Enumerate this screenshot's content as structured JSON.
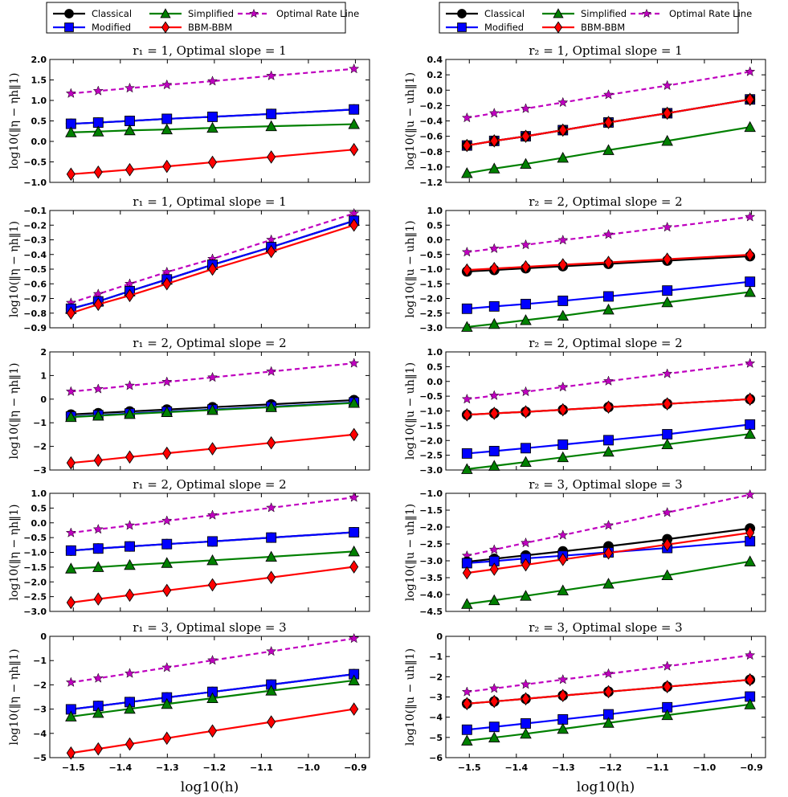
{
  "legend": {
    "entries": [
      {
        "name": "Classical",
        "color": "#000000",
        "marker": "circle",
        "dashed": false
      },
      {
        "name": "Modified",
        "color": "#0000ff",
        "marker": "square",
        "dashed": false
      },
      {
        "name": "Simplified",
        "color": "#008000",
        "marker": "triangle",
        "dashed": false
      },
      {
        "name": "BBM-BBM",
        "color": "#ff0000",
        "marker": "diamond",
        "dashed": false
      },
      {
        "name": "Optimal Rate Line",
        "color": "#bf00bf",
        "marker": "star",
        "dashed": true
      }
    ]
  },
  "x_axis": {
    "label": "log10(h)",
    "ticks": [
      -1.5,
      -1.4,
      -1.3,
      -1.2,
      -1.1,
      -1.0,
      -0.9
    ],
    "tick_labels": [
      "−1.5",
      "−1.4",
      "−1.3",
      "−1.2",
      "−1.1",
      "−1.0",
      "−0.9"
    ]
  },
  "chart_data": [
    {
      "type": "line",
      "panel": "left-1",
      "title": "r₁ = 1,   Optimal slope = 1",
      "ylabel": "log10(‖η − ηh‖1)",
      "xlim": [
        -1.55,
        -0.87
      ],
      "ylim": [
        -1.0,
        2.0
      ],
      "yticks": [
        -1.0,
        -0.5,
        0.0,
        0.5,
        1.0,
        1.5,
        2.0
      ],
      "ytick_labels": [
        "−1.0",
        "−0.5",
        "0.0",
        "0.5",
        "1.0",
        "1.5",
        "2.0"
      ],
      "x": [
        -1.505,
        -1.447,
        -1.38,
        -1.301,
        -1.204,
        -1.079,
        -0.903
      ],
      "series": [
        {
          "name": "Optimal Rate Line",
          "values": [
            1.17,
            1.23,
            1.3,
            1.38,
            1.47,
            1.6,
            1.77
          ]
        },
        {
          "name": "Classical",
          "values": [
            0.43,
            0.46,
            0.5,
            0.55,
            0.6,
            0.67,
            0.78
          ]
        },
        {
          "name": "Modified",
          "values": [
            0.43,
            0.46,
            0.5,
            0.55,
            0.6,
            0.67,
            0.78
          ]
        },
        {
          "name": "Simplified",
          "values": [
            0.22,
            0.24,
            0.27,
            0.29,
            0.33,
            0.37,
            0.42
          ]
        },
        {
          "name": "BBM-BBM",
          "values": [
            -0.8,
            -0.75,
            -0.69,
            -0.61,
            -0.51,
            -0.38,
            -0.2
          ]
        }
      ]
    },
    {
      "type": "line",
      "panel": "right-1",
      "title": "r₂ = 1,   Optimal slope = 1",
      "ylabel": "log10(‖u − uh‖1)",
      "xlim": [
        -1.55,
        -0.87
      ],
      "ylim": [
        -1.2,
        0.4
      ],
      "yticks": [
        -1.2,
        -1.0,
        -0.8,
        -0.6,
        -0.4,
        -0.2,
        0.0,
        0.2,
        0.4
      ],
      "ytick_labels": [
        "−1.2",
        "−1.0",
        "−0.8",
        "−0.6",
        "−0.4",
        "−0.2",
        "0.0",
        "0.2",
        "0.4"
      ],
      "x": [
        -1.505,
        -1.447,
        -1.38,
        -1.301,
        -1.204,
        -1.079,
        -0.903
      ],
      "series": [
        {
          "name": "Optimal Rate Line",
          "values": [
            -0.36,
            -0.3,
            -0.24,
            -0.16,
            -0.06,
            0.06,
            0.24
          ]
        },
        {
          "name": "Modified",
          "values": [
            -0.72,
            -0.66,
            -0.6,
            -0.52,
            -0.42,
            -0.3,
            -0.12
          ]
        },
        {
          "name": "Classical",
          "values": [
            -0.72,
            -0.66,
            -0.6,
            -0.52,
            -0.42,
            -0.3,
            -0.12
          ]
        },
        {
          "name": "BBM-BBM",
          "values": [
            -0.72,
            -0.66,
            -0.6,
            -0.52,
            -0.42,
            -0.3,
            -0.12
          ]
        },
        {
          "name": "Simplified",
          "values": [
            -1.08,
            -1.02,
            -0.96,
            -0.88,
            -0.78,
            -0.66,
            -0.48
          ]
        }
      ]
    },
    {
      "type": "line",
      "panel": "left-2",
      "title": "r₁ = 1,   Optimal slope = 1",
      "ylabel": "log10(‖η − ηh‖1)",
      "xlim": [
        -1.55,
        -0.87
      ],
      "ylim": [
        -0.9,
        -0.1
      ],
      "yticks": [
        -0.9,
        -0.8,
        -0.7,
        -0.6,
        -0.5,
        -0.4,
        -0.3,
        -0.2,
        -0.1
      ],
      "ytick_labels": [
        "−0.9",
        "−0.8",
        "−0.7",
        "−0.6",
        "−0.5",
        "−0.4",
        "−0.3",
        "−0.2",
        "−0.1"
      ],
      "x": [
        -1.505,
        -1.447,
        -1.38,
        -1.301,
        -1.204,
        -1.079,
        -0.903
      ],
      "series": [
        {
          "name": "Optimal Rate Line",
          "values": [
            -0.73,
            -0.67,
            -0.6,
            -0.52,
            -0.43,
            -0.3,
            -0.12
          ]
        },
        {
          "name": "Simplified",
          "values": [
            -0.77,
            -0.72,
            -0.65,
            -0.57,
            -0.47,
            -0.35,
            -0.17
          ]
        },
        {
          "name": "Classical",
          "values": [
            -0.77,
            -0.72,
            -0.65,
            -0.57,
            -0.47,
            -0.35,
            -0.17
          ]
        },
        {
          "name": "Modified",
          "values": [
            -0.77,
            -0.72,
            -0.65,
            -0.57,
            -0.47,
            -0.35,
            -0.17
          ]
        },
        {
          "name": "BBM-BBM",
          "values": [
            -0.8,
            -0.74,
            -0.68,
            -0.6,
            -0.5,
            -0.38,
            -0.2
          ]
        }
      ]
    },
    {
      "type": "line",
      "panel": "right-2",
      "title": "r₂ = 2,   Optimal slope = 2",
      "ylabel": "log10(‖u − uh‖1)",
      "xlim": [
        -1.55,
        -0.87
      ],
      "ylim": [
        -3.0,
        1.0
      ],
      "yticks": [
        -3.0,
        -2.5,
        -2.0,
        -1.5,
        -1.0,
        -0.5,
        0.0,
        0.5,
        1.0
      ],
      "ytick_labels": [
        "−3.0",
        "−2.5",
        "−2.0",
        "−1.5",
        "−1.0",
        "−0.5",
        "0.0",
        "0.5",
        "1.0"
      ],
      "x": [
        -1.505,
        -1.447,
        -1.38,
        -1.301,
        -1.204,
        -1.079,
        -0.903
      ],
      "series": [
        {
          "name": "Optimal Rate Line",
          "values": [
            -0.42,
            -0.3,
            -0.17,
            -0.01,
            0.18,
            0.43,
            0.78
          ]
        },
        {
          "name": "Classical",
          "values": [
            -1.08,
            -1.03,
            -0.97,
            -0.9,
            -0.82,
            -0.71,
            -0.56
          ]
        },
        {
          "name": "BBM-BBM",
          "values": [
            -1.03,
            -0.98,
            -0.92,
            -0.85,
            -0.77,
            -0.66,
            -0.51
          ]
        },
        {
          "name": "Modified",
          "values": [
            -2.35,
            -2.27,
            -2.19,
            -2.08,
            -1.93,
            -1.73,
            -1.43
          ]
        },
        {
          "name": "Simplified",
          "values": [
            -2.97,
            -2.87,
            -2.74,
            -2.59,
            -2.38,
            -2.13,
            -1.78
          ]
        }
      ]
    },
    {
      "type": "line",
      "panel": "left-3",
      "title": "r₁ = 2,   Optimal slope = 2",
      "ylabel": "log10(‖η − ηh‖1)",
      "xlim": [
        -1.55,
        -0.87
      ],
      "ylim": [
        -3,
        2
      ],
      "yticks": [
        -3,
        -2,
        -1,
        0,
        1,
        2
      ],
      "ytick_labels": [
        "−3",
        "−2",
        "−1",
        "0",
        "1",
        "2"
      ],
      "x": [
        -1.505,
        -1.447,
        -1.38,
        -1.301,
        -1.204,
        -1.079,
        -0.903
      ],
      "series": [
        {
          "name": "Optimal Rate Line",
          "values": [
            0.32,
            0.43,
            0.57,
            0.73,
            0.92,
            1.17,
            1.52
          ]
        },
        {
          "name": "Classical",
          "values": [
            -0.65,
            -0.59,
            -0.52,
            -0.44,
            -0.34,
            -0.22,
            -0.04
          ]
        },
        {
          "name": "Modified",
          "values": [
            -0.74,
            -0.68,
            -0.61,
            -0.53,
            -0.44,
            -0.32,
            -0.14
          ]
        },
        {
          "name": "Simplified",
          "values": [
            -0.76,
            -0.7,
            -0.63,
            -0.55,
            -0.46,
            -0.34,
            -0.16
          ]
        },
        {
          "name": "BBM-BBM",
          "values": [
            -2.7,
            -2.59,
            -2.45,
            -2.29,
            -2.1,
            -1.85,
            -1.5
          ]
        }
      ]
    },
    {
      "type": "line",
      "panel": "right-3",
      "title": "r₂ = 2,   Optimal slope = 2",
      "ylabel": "log10(‖u − uh‖1)",
      "xlim": [
        -1.55,
        -0.87
      ],
      "ylim": [
        -3.0,
        1.0
      ],
      "yticks": [
        -3.0,
        -2.5,
        -2.0,
        -1.5,
        -1.0,
        -0.5,
        0.0,
        0.5,
        1.0
      ],
      "ytick_labels": [
        "−3.0",
        "−2.5",
        "−2.0",
        "−1.5",
        "−1.0",
        "−0.5",
        "0.0",
        "0.5",
        "1.0"
      ],
      "x": [
        -1.505,
        -1.447,
        -1.38,
        -1.301,
        -1.204,
        -1.079,
        -0.903
      ],
      "series": [
        {
          "name": "Optimal Rate Line",
          "values": [
            -0.6,
            -0.48,
            -0.35,
            -0.19,
            0.01,
            0.26,
            0.61
          ]
        },
        {
          "name": "Classical",
          "values": [
            -1.13,
            -1.08,
            -1.03,
            -0.96,
            -0.87,
            -0.76,
            -0.6
          ]
        },
        {
          "name": "BBM-BBM",
          "values": [
            -1.13,
            -1.08,
            -1.03,
            -0.96,
            -0.87,
            -0.76,
            -0.6
          ]
        },
        {
          "name": "Modified",
          "values": [
            -2.44,
            -2.36,
            -2.26,
            -2.14,
            -1.99,
            -1.79,
            -1.46
          ]
        },
        {
          "name": "Simplified",
          "values": [
            -2.97,
            -2.86,
            -2.73,
            -2.57,
            -2.38,
            -2.13,
            -1.78
          ]
        }
      ]
    },
    {
      "type": "line",
      "panel": "left-4",
      "title": "r₁ = 2,   Optimal slope = 2",
      "ylabel": "log10(‖η − ηh‖1)",
      "xlim": [
        -1.55,
        -0.87
      ],
      "ylim": [
        -3.0,
        1.0
      ],
      "yticks": [
        -3.0,
        -2.5,
        -2.0,
        -1.5,
        -1.0,
        -0.5,
        0.0,
        0.5,
        1.0
      ],
      "ytick_labels": [
        "−3.0",
        "−2.5",
        "−2.0",
        "−1.5",
        "−1.0",
        "−0.5",
        "0.0",
        "0.5",
        "1.0"
      ],
      "x": [
        -1.505,
        -1.447,
        -1.38,
        -1.301,
        -1.204,
        -1.079,
        -0.903
      ],
      "series": [
        {
          "name": "Optimal Rate Line",
          "values": [
            -0.34,
            -0.22,
            -0.09,
            0.07,
            0.26,
            0.51,
            0.86
          ]
        },
        {
          "name": "Classical",
          "values": [
            -0.94,
            -0.87,
            -0.8,
            -0.72,
            -0.63,
            -0.5,
            -0.32
          ]
        },
        {
          "name": "Modified",
          "values": [
            -0.94,
            -0.87,
            -0.8,
            -0.72,
            -0.63,
            -0.5,
            -0.32
          ]
        },
        {
          "name": "Simplified",
          "values": [
            -1.55,
            -1.5,
            -1.43,
            -1.36,
            -1.27,
            -1.15,
            -0.97
          ]
        },
        {
          "name": "BBM-BBM",
          "values": [
            -2.7,
            -2.58,
            -2.45,
            -2.29,
            -2.1,
            -1.85,
            -1.49
          ]
        }
      ]
    },
    {
      "type": "line",
      "panel": "right-4",
      "title": "r₂ = 3,   Optimal slope = 3",
      "ylabel": "log10(‖u − uh‖1)",
      "xlim": [
        -1.55,
        -0.87
      ],
      "ylim": [
        -4.5,
        -1.0
      ],
      "yticks": [
        -4.5,
        -4.0,
        -3.5,
        -3.0,
        -2.5,
        -2.0,
        -1.5,
        -1.0
      ],
      "ytick_labels": [
        "−4.5",
        "−4.0",
        "−3.5",
        "−3.0",
        "−2.5",
        "−2.0",
        "−1.5",
        "−1.0"
      ],
      "x": [
        -1.505,
        -1.447,
        -1.38,
        -1.301,
        -1.204,
        -1.079,
        -0.903
      ],
      "series": [
        {
          "name": "Optimal Rate Line",
          "values": [
            -2.85,
            -2.67,
            -2.47,
            -2.24,
            -1.95,
            -1.57,
            -1.04
          ]
        },
        {
          "name": "Classical",
          "values": [
            -3.03,
            -2.94,
            -2.84,
            -2.72,
            -2.57,
            -2.36,
            -2.04
          ]
        },
        {
          "name": "Modified",
          "values": [
            -3.07,
            -3.01,
            -2.93,
            -2.85,
            -2.75,
            -2.62,
            -2.42
          ]
        },
        {
          "name": "BBM-BBM",
          "values": [
            -3.36,
            -3.25,
            -3.12,
            -2.96,
            -2.77,
            -2.52,
            -2.17
          ]
        },
        {
          "name": "Simplified",
          "values": [
            -4.28,
            -4.17,
            -4.04,
            -3.88,
            -3.68,
            -3.43,
            -3.02
          ]
        }
      ]
    },
    {
      "type": "line",
      "panel": "left-5",
      "title": "r₁ = 3,   Optimal slope = 3",
      "ylabel": "log10(‖η − ηh‖1)",
      "xlim": [
        -1.55,
        -0.87
      ],
      "ylim": [
        -5,
        0
      ],
      "yticks": [
        -5,
        -4,
        -3,
        -2,
        -1,
        0
      ],
      "ytick_labels": [
        "−5",
        "−4",
        "−3",
        "−2",
        "−1",
        "0"
      ],
      "x": [
        -1.505,
        -1.447,
        -1.38,
        -1.301,
        -1.204,
        -1.079,
        -0.903
      ],
      "series": [
        {
          "name": "Optimal Rate Line",
          "values": [
            -1.9,
            -1.73,
            -1.53,
            -1.29,
            -0.99,
            -0.62,
            -0.09
          ]
        },
        {
          "name": "Classical",
          "values": [
            -3.01,
            -2.87,
            -2.71,
            -2.52,
            -2.29,
            -1.99,
            -1.56
          ]
        },
        {
          "name": "Modified",
          "values": [
            -3.01,
            -2.87,
            -2.71,
            -2.52,
            -2.29,
            -1.99,
            -1.56
          ]
        },
        {
          "name": "Simplified",
          "values": [
            -3.31,
            -3.16,
            -2.99,
            -2.79,
            -2.55,
            -2.24,
            -1.82
          ]
        },
        {
          "name": "BBM-BBM",
          "values": [
            -4.81,
            -4.64,
            -4.44,
            -4.2,
            -3.9,
            -3.53,
            -3.0
          ]
        }
      ]
    },
    {
      "type": "line",
      "panel": "right-5",
      "title": "r₂ = 3,   Optimal slope = 3",
      "ylabel": "log10(‖u − uh‖1)",
      "xlim": [
        -1.55,
        -0.87
      ],
      "ylim": [
        -6,
        0
      ],
      "yticks": [
        -6,
        -5,
        -4,
        -3,
        -2,
        -1,
        0
      ],
      "ytick_labels": [
        "−6",
        "−5",
        "−4",
        "−3",
        "−2",
        "−1",
        "0"
      ],
      "x": [
        -1.505,
        -1.447,
        -1.38,
        -1.301,
        -1.204,
        -1.079,
        -0.903
      ],
      "series": [
        {
          "name": "Optimal Rate Line",
          "values": [
            -2.75,
            -2.58,
            -2.38,
            -2.14,
            -1.85,
            -1.48,
            -0.94
          ]
        },
        {
          "name": "Classical",
          "values": [
            -3.33,
            -3.22,
            -3.09,
            -2.93,
            -2.74,
            -2.49,
            -2.15
          ]
        },
        {
          "name": "BBM-BBM",
          "values": [
            -3.33,
            -3.22,
            -3.09,
            -2.93,
            -2.74,
            -2.49,
            -2.15
          ]
        },
        {
          "name": "Modified",
          "values": [
            -4.62,
            -4.48,
            -4.31,
            -4.11,
            -3.86,
            -3.51,
            -2.98
          ]
        },
        {
          "name": "Simplified",
          "values": [
            -5.16,
            -5.01,
            -4.82,
            -4.58,
            -4.28,
            -3.9,
            -3.37
          ]
        }
      ]
    }
  ]
}
